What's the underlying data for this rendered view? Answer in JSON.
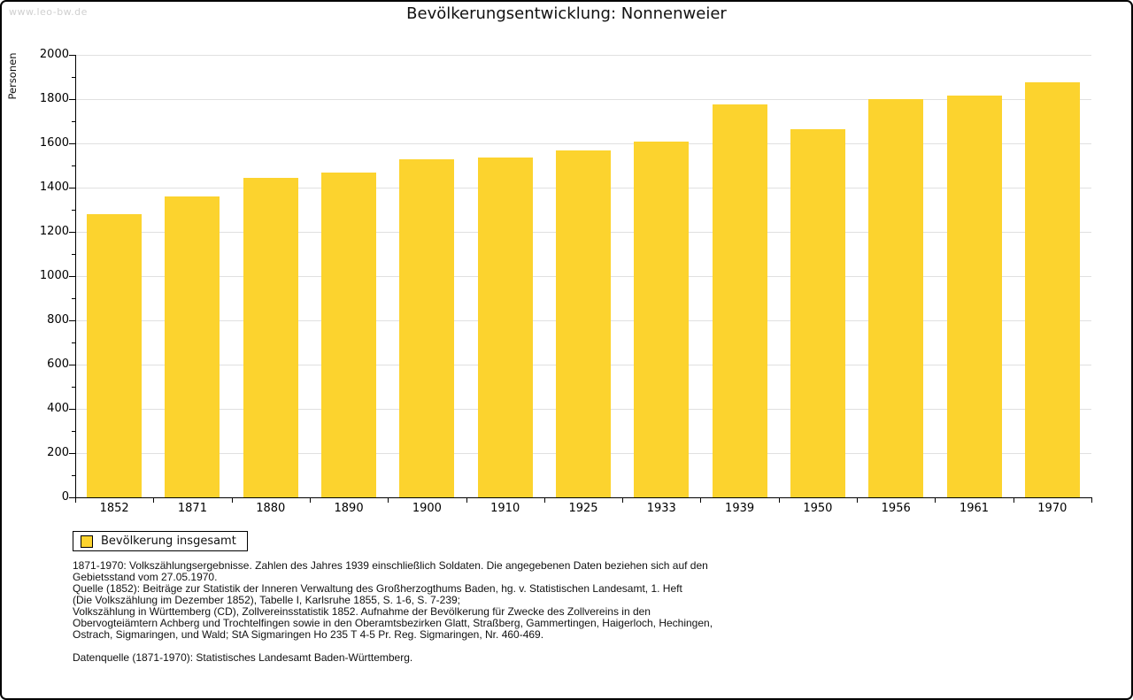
{
  "watermark": "www.leo-bw.de",
  "chart_data": {
    "type": "bar",
    "title": "Bevölkerungsentwicklung: Nonnenweier",
    "xlabel": "",
    "ylabel": "Personen",
    "categories": [
      "1852",
      "1871",
      "1880",
      "1890",
      "1900",
      "1910",
      "1925",
      "1933",
      "1939",
      "1950",
      "1956",
      "1961",
      "1970"
    ],
    "values": [
      1280,
      1360,
      1445,
      1467,
      1530,
      1536,
      1570,
      1610,
      1775,
      1665,
      1800,
      1816,
      1877
    ],
    "series_name": "Bevölkerung insgesamt",
    "ylim": [
      0,
      2000
    ],
    "ytick_step": 200,
    "ytick_minor_step": 100,
    "grid": true,
    "legend_position": "bottom-left"
  },
  "legend": {
    "label": "Bevölkerung insgesamt"
  },
  "colors": {
    "bar": "#fcd32e",
    "grid": "#e0e0e0",
    "axis": "#000000"
  },
  "source_notes": {
    "lines": [
      "1871-1970: Volkszählungsergebnisse. Zahlen des Jahres 1939 einschließlich Soldaten. Die angegebenen Daten beziehen sich auf den",
      "Gebietsstand vom 27.05.1970.",
      "Quelle (1852): Beiträge zur Statistik der Inneren Verwaltung des Großherzogthums Baden, hg. v. Statistischen Landesamt, 1. Heft",
      "(Die Volkszählung im Dezember 1852), Tabelle I, Karlsruhe 1855, S. 1-6, S. 7-239;",
      "Volkszählung in Württemberg (CD), Zollvereinsstatistik 1852. Aufnahme der Bevölkerung für Zwecke des Zollvereins in den",
      "Obervogteiämtern Achberg und Trochtelfingen sowie in den Oberamtsbezirken Glatt, Straßberg, Gammertingen, Haigerloch, Hechingen,",
      "Ostrach, Sigmaringen, und Wald; StA Sigmaringen Ho 235 T 4-5 Pr. Reg. Sigmaringen, Nr. 460-469."
    ],
    "datasource": "Datenquelle (1871-1970): Statistisches Landesamt Baden-Württemberg."
  }
}
